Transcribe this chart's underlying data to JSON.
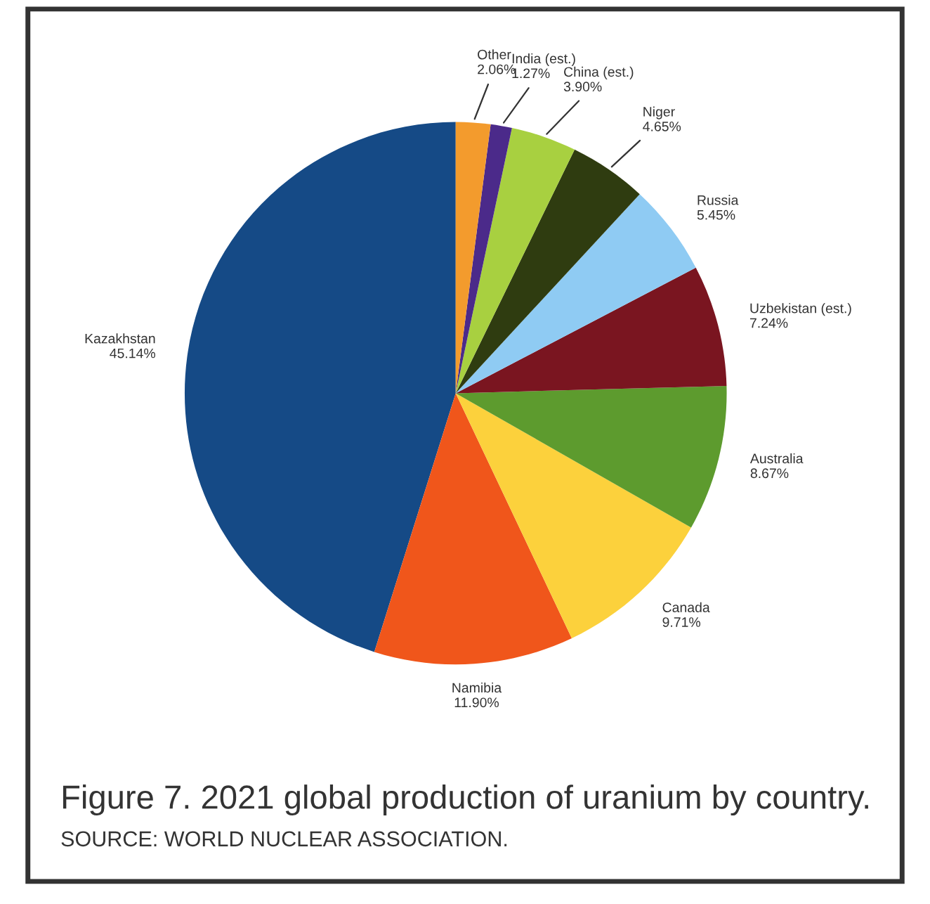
{
  "chart_data": {
    "type": "pie",
    "title": "Figure 7. 2021 global production of uranium by country.",
    "annotations": [
      "SOURCE: WORLD NUCLEAR ASSOCIATION."
    ],
    "categories": [
      "Kazakhstan",
      "Namibia",
      "Canada",
      "Australia",
      "Uzbekistan (est.)",
      "Russia",
      "Niger",
      "China (est.)",
      "India (est.)",
      "Other"
    ],
    "values": [
      45.14,
      11.9,
      9.71,
      8.67,
      7.24,
      5.45,
      4.65,
      3.9,
      1.27,
      2.06
    ],
    "colors": [
      "#154a86",
      "#f0561b",
      "#fcd13c",
      "#5d9b2e",
      "#7a1520",
      "#8fcbf3",
      "#2f3c10",
      "#a8d040",
      "#4b2a8a",
      "#f39b2d"
    ],
    "value_labels": [
      "45.14%",
      "11.90%",
      "9.71%",
      "8.67%",
      "7.24%",
      "5.45%",
      "4.65%",
      "3.90%",
      "1.27%",
      "2.06%"
    ],
    "legend": false
  }
}
